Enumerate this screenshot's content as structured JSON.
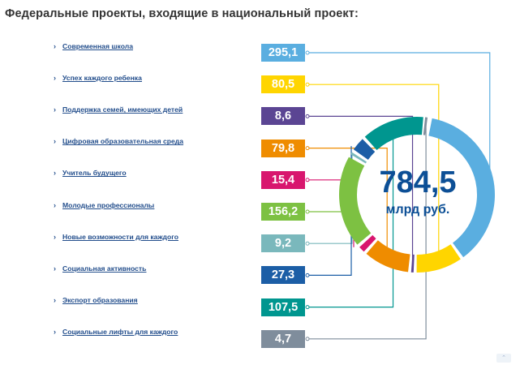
{
  "header": {
    "title": "Федеральные проекты, входящие в национальный проект:"
  },
  "chart_data": {
    "type": "pie",
    "total": "784,5",
    "unit": "млрд руб.",
    "categories": [
      "Современная школа",
      "Успех каждого ребенка",
      "Поддержка семей, имеющих детей",
      "Цифровая образовательная среда",
      "Учитель будущего",
      "Молодые профессионалы",
      "Новые возможности для каждого",
      "Социальная активность",
      "Экспорт образования",
      "Социальные лифты для каждого"
    ],
    "value_labels": [
      "295,1",
      "80,5",
      "8,6",
      "79,8",
      "15,4",
      "156,2",
      "9,2",
      "27,3",
      "107,5",
      "4,7"
    ],
    "values": [
      295.1,
      80.5,
      8.6,
      79.8,
      15.4,
      156.2,
      9.2,
      27.3,
      107.5,
      4.7
    ],
    "colors": [
      "#5aaee0",
      "#ffd500",
      "#5b4593",
      "#ef8c00",
      "#d8166e",
      "#7dc142",
      "#7ab8bc",
      "#1c5ea6",
      "#00968f",
      "#7f8d9c"
    ]
  },
  "scroll_button": {
    "icon": "chevron-up-icon",
    "label": "⌃"
  }
}
